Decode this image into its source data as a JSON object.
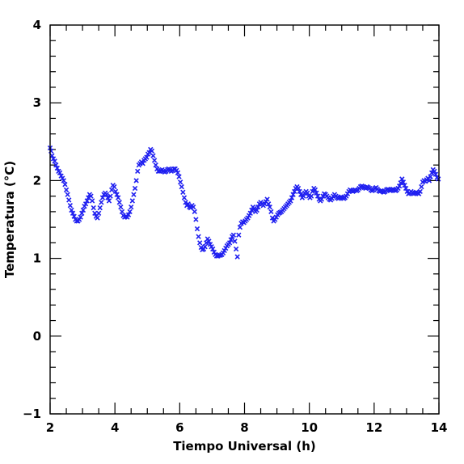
{
  "chart_data": {
    "type": "scatter",
    "xlabel": "Tiempo Universal (h)",
    "ylabel": "Temperatura (°C)",
    "xlim": [
      2,
      14
    ],
    "ylim": [
      -1,
      4
    ],
    "x_ticks": [
      2,
      4,
      6,
      8,
      10,
      12,
      14
    ],
    "x_tick_labels": [
      "2",
      "4",
      "6",
      "8",
      "10",
      "12",
      "14"
    ],
    "y_ticks": [
      -1,
      0,
      1,
      2,
      3,
      4
    ],
    "y_tick_labels": [
      "−1",
      "0",
      "1",
      "2",
      "3",
      "4"
    ],
    "x_minor_step": 0.5,
    "y_minor_step": 0.2,
    "grid": false,
    "marker": "x",
    "marker_color": "#1f1ff0",
    "series": [
      {
        "points": [
          [
            2.0,
            2.42
          ],
          [
            2.03,
            2.38
          ],
          [
            2.06,
            2.32
          ],
          [
            2.1,
            2.28
          ],
          [
            2.14,
            2.25
          ],
          [
            2.18,
            2.2
          ],
          [
            2.22,
            2.16
          ],
          [
            2.26,
            2.12
          ],
          [
            2.3,
            2.1
          ],
          [
            2.34,
            2.06
          ],
          [
            2.38,
            2.03
          ],
          [
            2.42,
            2.0
          ],
          [
            2.46,
            1.95
          ],
          [
            2.5,
            1.88
          ],
          [
            2.54,
            1.82
          ],
          [
            2.58,
            1.75
          ],
          [
            2.62,
            1.68
          ],
          [
            2.66,
            1.62
          ],
          [
            2.7,
            1.58
          ],
          [
            2.74,
            1.54
          ],
          [
            2.78,
            1.5
          ],
          [
            2.82,
            1.48
          ],
          [
            2.86,
            1.48
          ],
          [
            2.9,
            1.5
          ],
          [
            2.94,
            1.53
          ],
          [
            2.98,
            1.58
          ],
          [
            3.02,
            1.62
          ],
          [
            3.06,
            1.67
          ],
          [
            3.1,
            1.7
          ],
          [
            3.14,
            1.74
          ],
          [
            3.18,
            1.78
          ],
          [
            3.22,
            1.82
          ],
          [
            3.26,
            1.8
          ],
          [
            3.3,
            1.74
          ],
          [
            3.34,
            1.65
          ],
          [
            3.38,
            1.58
          ],
          [
            3.42,
            1.54
          ],
          [
            3.46,
            1.52
          ],
          [
            3.5,
            1.58
          ],
          [
            3.54,
            1.65
          ],
          [
            3.58,
            1.72
          ],
          [
            3.62,
            1.78
          ],
          [
            3.66,
            1.82
          ],
          [
            3.7,
            1.84
          ],
          [
            3.74,
            1.82
          ],
          [
            3.78,
            1.78
          ],
          [
            3.82,
            1.74
          ],
          [
            3.86,
            1.8
          ],
          [
            3.9,
            1.88
          ],
          [
            3.94,
            1.94
          ],
          [
            3.98,
            1.92
          ],
          [
            4.02,
            1.86
          ],
          [
            4.06,
            1.82
          ],
          [
            4.1,
            1.78
          ],
          [
            4.14,
            1.72
          ],
          [
            4.18,
            1.66
          ],
          [
            4.22,
            1.6
          ],
          [
            4.26,
            1.55
          ],
          [
            4.3,
            1.53
          ],
          [
            4.34,
            1.54
          ],
          [
            4.38,
            1.53
          ],
          [
            4.42,
            1.56
          ],
          [
            4.46,
            1.6
          ],
          [
            4.5,
            1.66
          ],
          [
            4.54,
            1.74
          ],
          [
            4.58,
            1.82
          ],
          [
            4.62,
            1.9
          ],
          [
            4.66,
            2.0
          ],
          [
            4.7,
            2.12
          ],
          [
            4.74,
            2.2
          ],
          [
            4.78,
            2.22
          ],
          [
            4.82,
            2.24
          ],
          [
            4.86,
            2.22
          ],
          [
            4.9,
            2.26
          ],
          [
            4.94,
            2.28
          ],
          [
            4.98,
            2.3
          ],
          [
            5.02,
            2.34
          ],
          [
            5.06,
            2.36
          ],
          [
            5.1,
            2.4
          ],
          [
            5.14,
            2.38
          ],
          [
            5.18,
            2.32
          ],
          [
            5.22,
            2.26
          ],
          [
            5.26,
            2.2
          ],
          [
            5.3,
            2.15
          ],
          [
            5.34,
            2.12
          ],
          [
            5.38,
            2.12
          ],
          [
            5.42,
            2.13
          ],
          [
            5.46,
            2.14
          ],
          [
            5.5,
            2.12
          ],
          [
            5.54,
            2.11
          ],
          [
            5.58,
            2.12
          ],
          [
            5.62,
            2.14
          ],
          [
            5.66,
            2.15
          ],
          [
            5.7,
            2.14
          ],
          [
            5.74,
            2.12
          ],
          [
            5.78,
            2.13
          ],
          [
            5.82,
            2.15
          ],
          [
            5.86,
            2.15
          ],
          [
            5.9,
            2.13
          ],
          [
            5.94,
            2.1
          ],
          [
            5.98,
            2.05
          ],
          [
            6.02,
            1.98
          ],
          [
            6.06,
            1.92
          ],
          [
            6.1,
            1.85
          ],
          [
            6.14,
            1.78
          ],
          [
            6.18,
            1.72
          ],
          [
            6.22,
            1.68
          ],
          [
            6.26,
            1.7
          ],
          [
            6.3,
            1.66
          ],
          [
            6.34,
            1.65
          ],
          [
            6.38,
            1.68
          ],
          [
            6.42,
            1.66
          ],
          [
            6.46,
            1.6
          ],
          [
            6.5,
            1.5
          ],
          [
            6.54,
            1.38
          ],
          [
            6.58,
            1.28
          ],
          [
            6.62,
            1.2
          ],
          [
            6.66,
            1.14
          ],
          [
            6.7,
            1.11
          ],
          [
            6.74,
            1.12
          ],
          [
            6.78,
            1.15
          ],
          [
            6.82,
            1.2
          ],
          [
            6.86,
            1.25
          ],
          [
            6.9,
            1.22
          ],
          [
            6.94,
            1.18
          ],
          [
            6.98,
            1.15
          ],
          [
            7.02,
            1.12
          ],
          [
            7.06,
            1.08
          ],
          [
            7.1,
            1.05
          ],
          [
            7.14,
            1.03
          ],
          [
            7.18,
            1.03
          ],
          [
            7.22,
            1.04
          ],
          [
            7.26,
            1.04
          ],
          [
            7.3,
            1.05
          ],
          [
            7.34,
            1.07
          ],
          [
            7.38,
            1.1
          ],
          [
            7.42,
            1.13
          ],
          [
            7.46,
            1.16
          ],
          [
            7.5,
            1.18
          ],
          [
            7.54,
            1.2
          ],
          [
            7.58,
            1.24
          ],
          [
            7.62,
            1.28
          ],
          [
            7.66,
            1.3
          ],
          [
            7.7,
            1.22
          ],
          [
            7.74,
            1.12
          ],
          [
            7.78,
            1.02
          ],
          [
            7.82,
            1.3
          ],
          [
            7.86,
            1.4
          ],
          [
            7.9,
            1.45
          ],
          [
            7.94,
            1.47
          ],
          [
            7.98,
            1.46
          ],
          [
            8.02,
            1.48
          ],
          [
            8.06,
            1.5
          ],
          [
            8.1,
            1.52
          ],
          [
            8.14,
            1.55
          ],
          [
            8.18,
            1.58
          ],
          [
            8.22,
            1.62
          ],
          [
            8.26,
            1.66
          ],
          [
            8.3,
            1.64
          ],
          [
            8.34,
            1.6
          ],
          [
            8.38,
            1.62
          ],
          [
            8.42,
            1.66
          ],
          [
            8.46,
            1.7
          ],
          [
            8.5,
            1.72
          ],
          [
            8.54,
            1.7
          ],
          [
            8.58,
            1.68
          ],
          [
            8.62,
            1.7
          ],
          [
            8.66,
            1.73
          ],
          [
            8.7,
            1.76
          ],
          [
            8.74,
            1.7
          ],
          [
            8.78,
            1.66
          ],
          [
            8.82,
            1.6
          ],
          [
            8.86,
            1.52
          ],
          [
            8.9,
            1.48
          ],
          [
            8.94,
            1.5
          ],
          [
            8.98,
            1.53
          ],
          [
            9.02,
            1.56
          ],
          [
            9.06,
            1.58
          ],
          [
            9.1,
            1.59
          ],
          [
            9.14,
            1.6
          ],
          [
            9.18,
            1.62
          ],
          [
            9.22,
            1.64
          ],
          [
            9.26,
            1.66
          ],
          [
            9.3,
            1.68
          ],
          [
            9.34,
            1.7
          ],
          [
            9.38,
            1.72
          ],
          [
            9.42,
            1.74
          ],
          [
            9.46,
            1.78
          ],
          [
            9.5,
            1.82
          ],
          [
            9.54,
            1.86
          ],
          [
            9.58,
            1.9
          ],
          [
            9.62,
            1.92
          ],
          [
            9.66,
            1.9
          ],
          [
            9.7,
            1.86
          ],
          [
            9.74,
            1.82
          ],
          [
            9.78,
            1.78
          ],
          [
            9.82,
            1.8
          ],
          [
            9.86,
            1.84
          ],
          [
            9.9,
            1.86
          ],
          [
            9.94,
            1.84
          ],
          [
            9.98,
            1.8
          ],
          [
            10.02,
            1.78
          ],
          [
            10.06,
            1.8
          ],
          [
            10.1,
            1.86
          ],
          [
            10.14,
            1.9
          ],
          [
            10.18,
            1.88
          ],
          [
            10.22,
            1.84
          ],
          [
            10.26,
            1.8
          ],
          [
            10.3,
            1.76
          ],
          [
            10.34,
            1.74
          ],
          [
            10.38,
            1.76
          ],
          [
            10.42,
            1.8
          ],
          [
            10.46,
            1.83
          ],
          [
            10.5,
            1.82
          ],
          [
            10.54,
            1.8
          ],
          [
            10.58,
            1.78
          ],
          [
            10.62,
            1.76
          ],
          [
            10.66,
            1.75
          ],
          [
            10.7,
            1.77
          ],
          [
            10.74,
            1.8
          ],
          [
            10.78,
            1.82
          ],
          [
            10.82,
            1.8
          ],
          [
            10.86,
            1.78
          ],
          [
            10.9,
            1.77
          ],
          [
            10.94,
            1.78
          ],
          [
            10.98,
            1.79
          ],
          [
            11.02,
            1.78
          ],
          [
            11.06,
            1.77
          ],
          [
            11.1,
            1.78
          ],
          [
            11.14,
            1.8
          ],
          [
            11.18,
            1.83
          ],
          [
            11.22,
            1.86
          ],
          [
            11.26,
            1.88
          ],
          [
            11.3,
            1.87
          ],
          [
            11.34,
            1.86
          ],
          [
            11.38,
            1.87
          ],
          [
            11.42,
            1.88
          ],
          [
            11.46,
            1.87
          ],
          [
            11.5,
            1.88
          ],
          [
            11.54,
            1.9
          ],
          [
            11.58,
            1.92
          ],
          [
            11.62,
            1.93
          ],
          [
            11.66,
            1.92
          ],
          [
            11.7,
            1.91
          ],
          [
            11.74,
            1.9
          ],
          [
            11.78,
            1.92
          ],
          [
            11.82,
            1.91
          ],
          [
            11.86,
            1.9
          ],
          [
            11.9,
            1.88
          ],
          [
            11.94,
            1.87
          ],
          [
            11.98,
            1.88
          ],
          [
            12.02,
            1.9
          ],
          [
            12.06,
            1.91
          ],
          [
            12.1,
            1.89
          ],
          [
            12.14,
            1.87
          ],
          [
            12.18,
            1.86
          ],
          [
            12.22,
            1.87
          ],
          [
            12.26,
            1.86
          ],
          [
            12.3,
            1.85
          ],
          [
            12.34,
            1.86
          ],
          [
            12.38,
            1.88
          ],
          [
            12.42,
            1.89
          ],
          [
            12.46,
            1.88
          ],
          [
            12.5,
            1.87
          ],
          [
            12.54,
            1.88
          ],
          [
            12.58,
            1.89
          ],
          [
            12.62,
            1.88
          ],
          [
            12.66,
            1.87
          ],
          [
            12.7,
            1.88
          ],
          [
            12.74,
            1.9
          ],
          [
            12.78,
            1.93
          ],
          [
            12.82,
            1.97
          ],
          [
            12.86,
            2.02
          ],
          [
            12.9,
            1.98
          ],
          [
            12.94,
            1.94
          ],
          [
            12.98,
            1.9
          ],
          [
            13.02,
            1.86
          ],
          [
            13.06,
            1.83
          ],
          [
            13.1,
            1.84
          ],
          [
            13.14,
            1.86
          ],
          [
            13.18,
            1.84
          ],
          [
            13.22,
            1.83
          ],
          [
            13.26,
            1.84
          ],
          [
            13.3,
            1.85
          ],
          [
            13.34,
            1.84
          ],
          [
            13.38,
            1.83
          ],
          [
            13.42,
            1.86
          ],
          [
            13.46,
            1.92
          ],
          [
            13.5,
            1.98
          ],
          [
            13.54,
            2.0
          ],
          [
            13.58,
            1.99
          ],
          [
            13.62,
            2.01
          ],
          [
            13.66,
            2.03
          ],
          [
            13.7,
            2.0
          ],
          [
            13.74,
            2.05
          ],
          [
            13.78,
            2.1
          ],
          [
            13.82,
            2.14
          ],
          [
            13.86,
            2.12
          ],
          [
            13.9,
            2.08
          ],
          [
            13.94,
            2.04
          ],
          [
            13.98,
            2.02
          ]
        ]
      }
    ]
  }
}
